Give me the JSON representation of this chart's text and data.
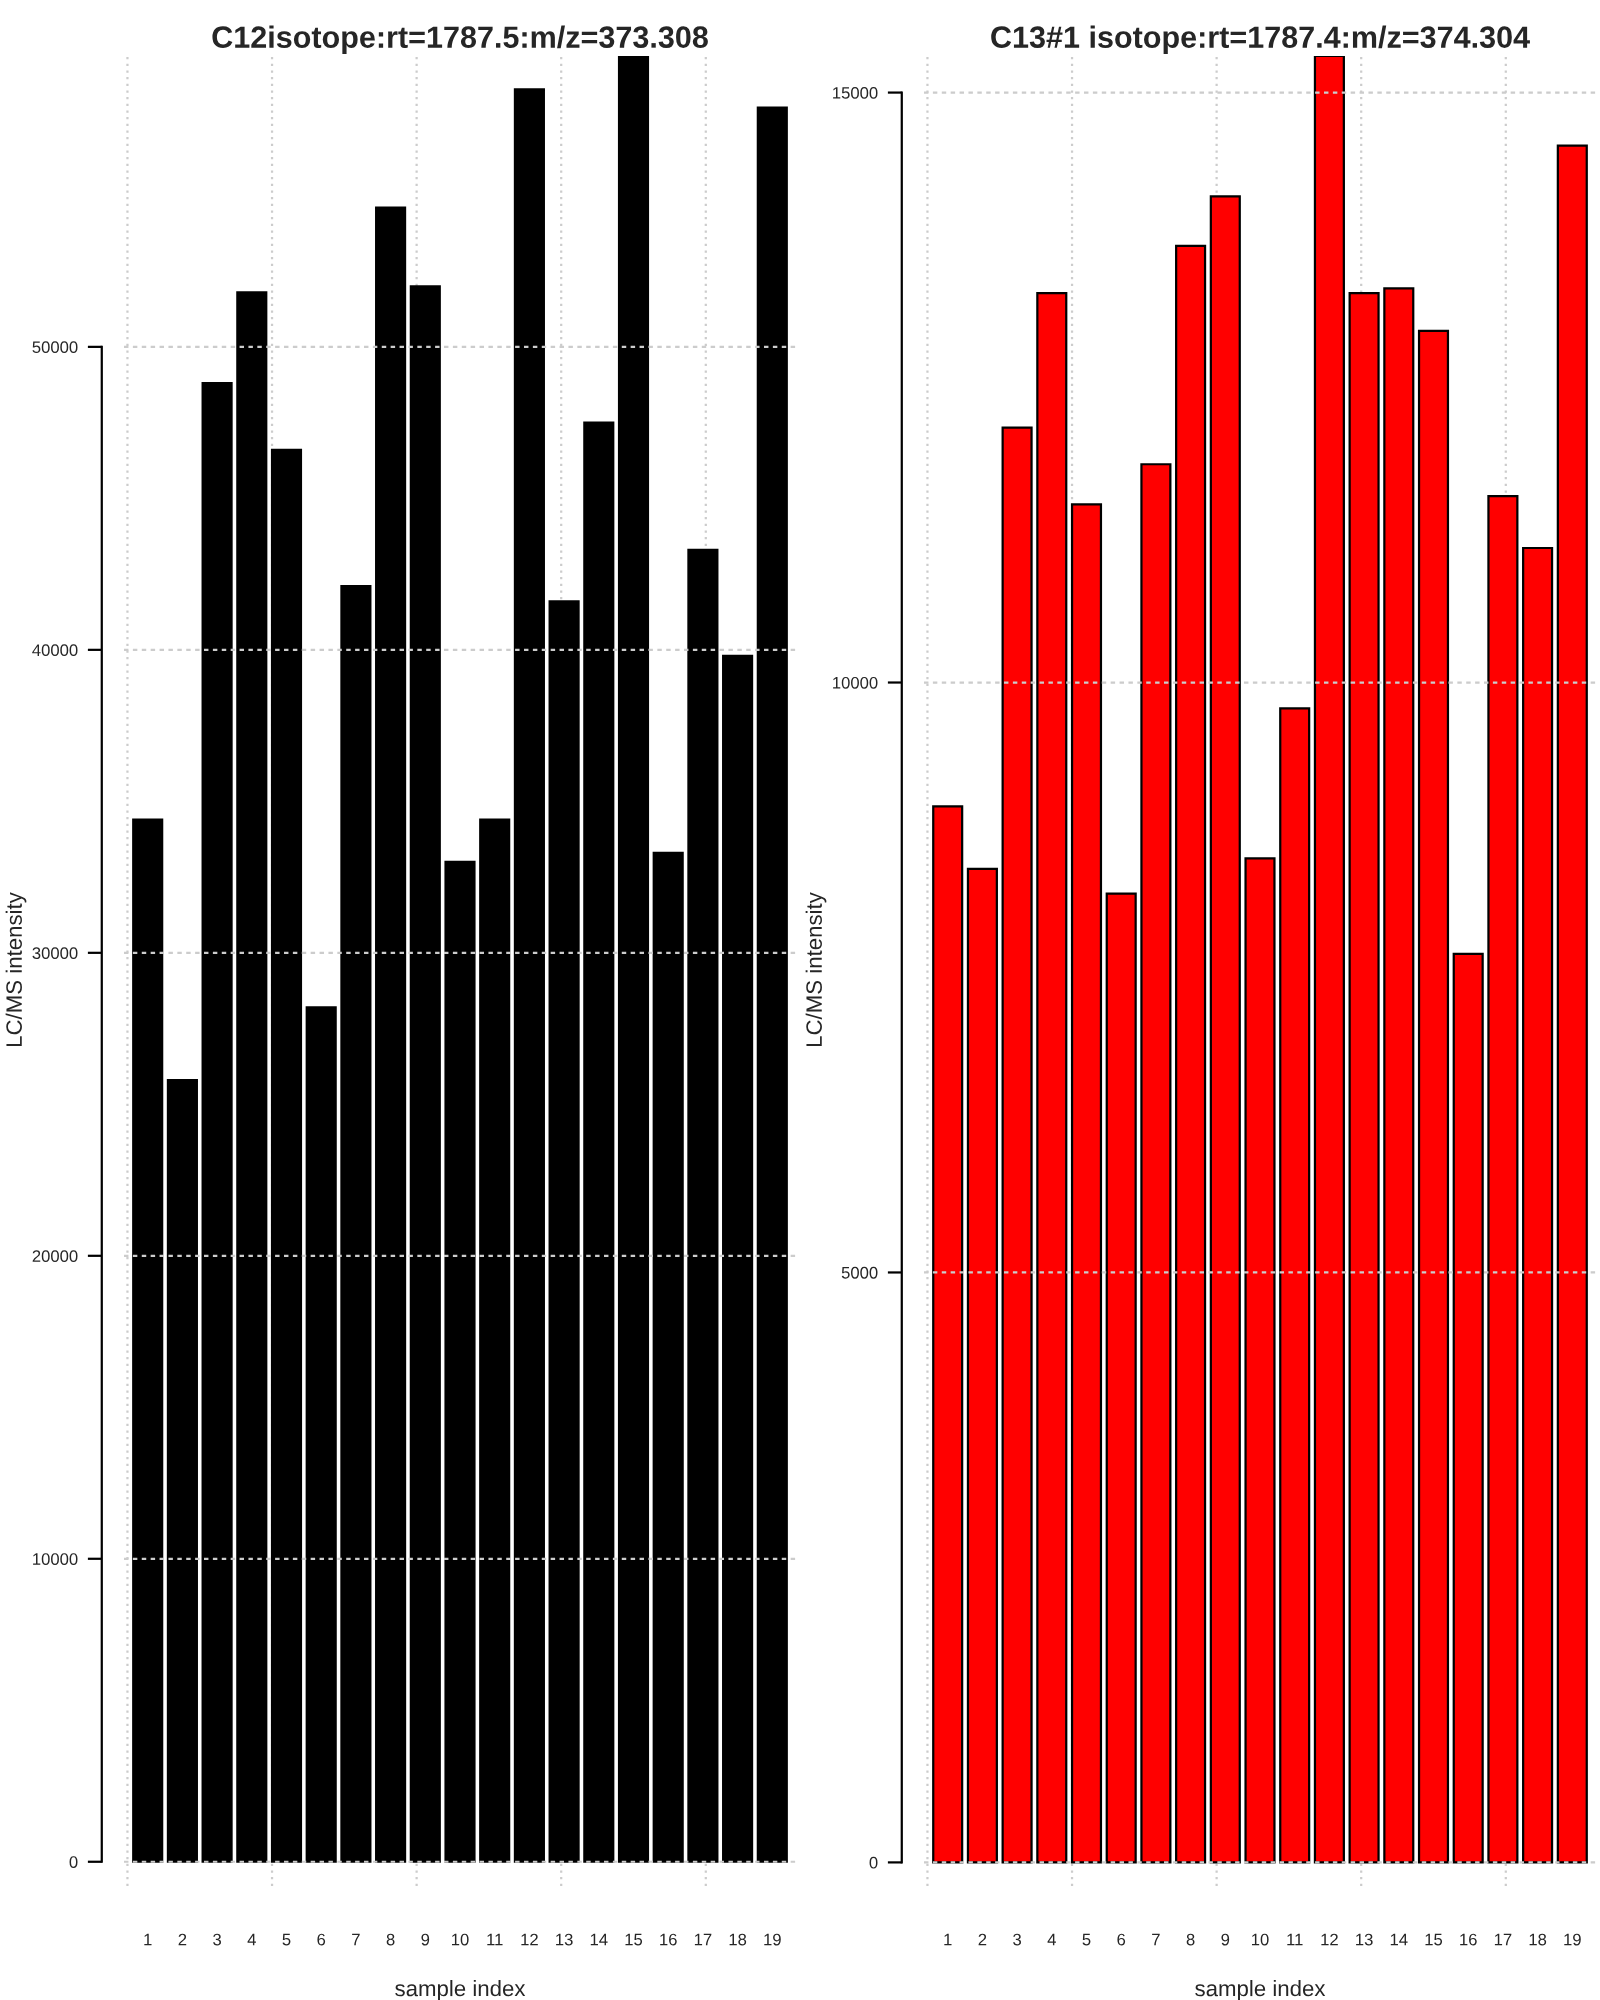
{
  "chart_data": [
    {
      "type": "bar",
      "title": "C12isotope:rt=1787.5:m/z=373.308",
      "xlabel": "sample index",
      "ylabel": "LC/MS intensity",
      "categories": [
        "1",
        "2",
        "3",
        "4",
        "5",
        "6",
        "7",
        "8",
        "9",
        "10",
        "11",
        "12",
        "13",
        "14",
        "15",
        "16",
        "17",
        "18",
        "19"
      ],
      "values": [
        34400,
        25800,
        48800,
        51800,
        46600,
        28200,
        42100,
        54600,
        52000,
        33000,
        34400,
        58500,
        41600,
        47500,
        59600,
        33300,
        43300,
        39800,
        57900
      ],
      "color": "#000000",
      "ylim": [
        -800,
        59600
      ],
      "yticks": [
        0,
        10000,
        20000,
        30000,
        40000,
        50000
      ],
      "grid": true
    },
    {
      "type": "bar",
      "title": "C13#1 isotope:rt=1787.4:m/z=374.304",
      "xlabel": "sample index",
      "ylabel": "LC/MS intensity",
      "categories": [
        "1",
        "2",
        "3",
        "4",
        "5",
        "6",
        "7",
        "8",
        "9",
        "10",
        "11",
        "12",
        "13",
        "14",
        "15",
        "16",
        "17",
        "18",
        "19"
      ],
      "values": [
        8950,
        8420,
        12160,
        13300,
        11510,
        8210,
        11850,
        13700,
        14120,
        8510,
        9780,
        15310,
        13300,
        13340,
        12980,
        7700,
        11580,
        11140,
        14550
      ],
      "color": "#ff0000",
      "ylim": [
        -200,
        15310
      ],
      "yticks": [
        0,
        5000,
        10000,
        15000
      ],
      "grid": true
    }
  ]
}
